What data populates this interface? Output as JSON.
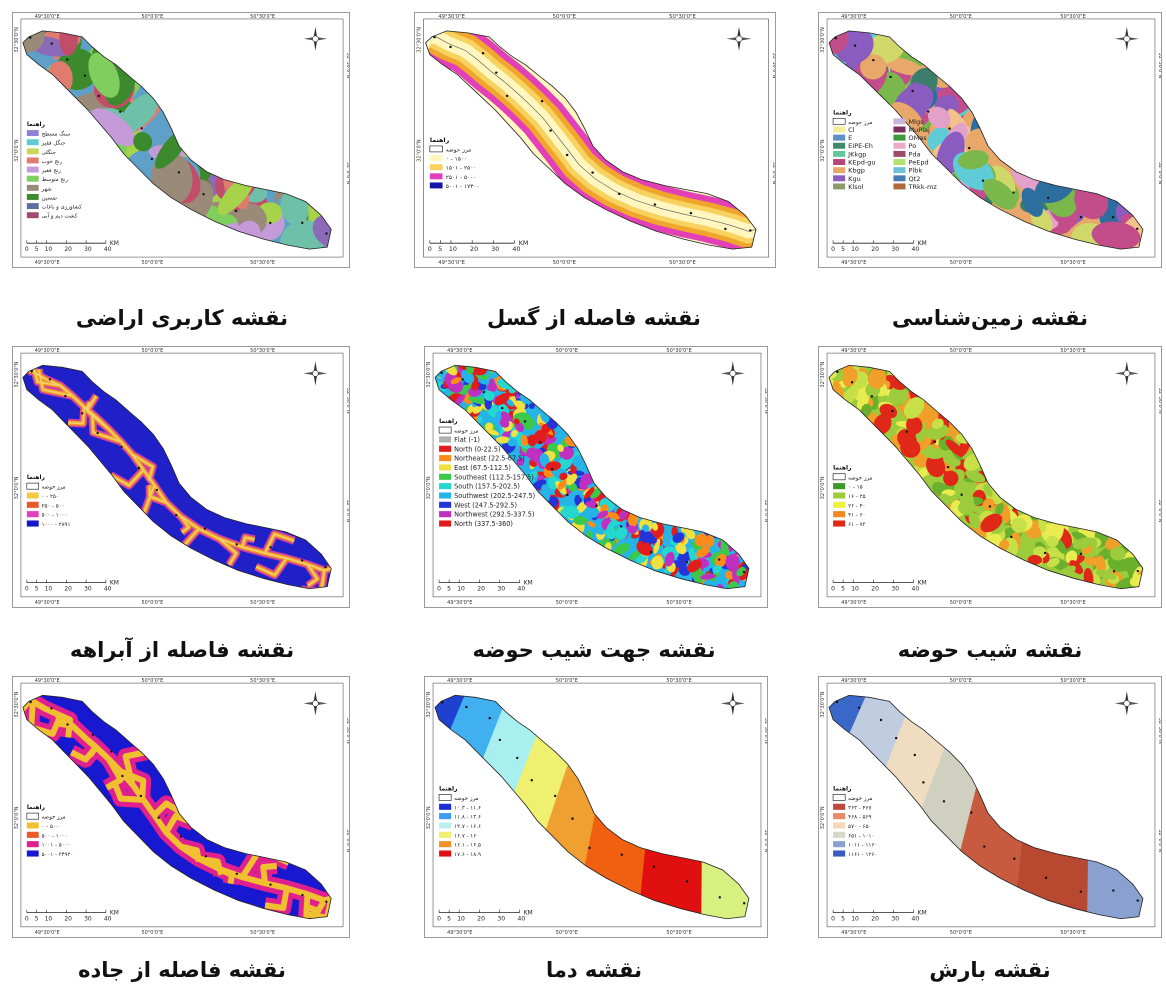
{
  "header": {
    "left": "",
    "center": "",
    "right": ""
  },
  "coords": {
    "lon": [
      "49°30'0\"E",
      "50°0'0\"E",
      "50°30'0\"E"
    ],
    "lat": [
      "32°30'0\"N",
      "32°0'0\"N"
    ]
  },
  "scale": {
    "ticks": [
      "0",
      "5",
      "10",
      "20",
      "30",
      "40"
    ],
    "unit": "KM"
  },
  "legend_title": "راهنما",
  "boundary_label": "مرز حوضه",
  "basin_label": "",
  "panels": [
    {
      "id": "landuse",
      "caption": "نقشه کاربری اراضی",
      "colors": [
        "#5ea0c8",
        "#6ec1a8",
        "#a6d34a",
        "#e07c6e",
        "#c59ad8",
        "#7fce5e",
        "#9a8a78",
        "#3d8a2e",
        "#8c6ab8",
        "#c24d6b"
      ],
      "legend": [
        {
          "label": "سنگ مسطح",
          "color": "#8e80d8"
        },
        {
          "label": "جنگل فقیر",
          "color": "#5fcbd6"
        },
        {
          "label": "جنگلی",
          "color": "#c9d65a"
        },
        {
          "label": "رنج خوب",
          "color": "#e07c6e"
        },
        {
          "label": "رنج فقیر",
          "color": "#c59ad8"
        },
        {
          "label": "رنج متوسط",
          "color": "#7fce5e"
        },
        {
          "label": "شهر",
          "color": "#9a8a78"
        },
        {
          "label": "تمسین",
          "color": "#3d8a2e"
        },
        {
          "label": "کشاورزی و باغات",
          "color": "#5b6fa0"
        },
        {
          "label": "کشت دیم و آبی",
          "color": "#a14b72"
        }
      ]
    },
    {
      "id": "fault",
      "caption": "نقشه فاصله از گسل",
      "colors": [
        "#fff6c0",
        "#f8d25e",
        "#f0a62c",
        "#e23fb8",
        "#1414a8"
      ],
      "legend": [
        {
          "label": "مرز حوضه",
          "color": "#ffffff",
          "outline": true
        },
        {
          "label": "۰ - ۱۵۰۰",
          "color": "#fff6c0"
        },
        {
          "label": "۱۵۰۱ - ۲۵۰۰",
          "color": "#f8d25e"
        },
        {
          "label": "۲۵۰۱ - ۵۰۰۰",
          "color": "#e23fb8"
        },
        {
          "label": "۵۰۰۱ - ۱۷۳۰۰",
          "color": "#1414a8"
        }
      ]
    },
    {
      "id": "geology",
      "caption": "نقشه زمین‌شناسی",
      "colors": [
        "#e8a86a",
        "#5fcbd6",
        "#7ab84c",
        "#c24d8a",
        "#8a5cc0",
        "#f2c28a",
        "#3a7d6a",
        "#d0d86a",
        "#2c6e9e",
        "#e3a0c8"
      ],
      "legend": [
        {
          "label": "مرز حوضه",
          "color": "#ffffff",
          "outline": true
        },
        {
          "label": "Cl",
          "color": "#f1ef9a"
        },
        {
          "label": "E",
          "color": "#5e8fc6"
        },
        {
          "label": "EIPE-Eh",
          "color": "#3d8a6e"
        },
        {
          "label": "JKkgp",
          "color": "#61c89a"
        },
        {
          "label": "KEpd-gu",
          "color": "#b8447a"
        },
        {
          "label": "Kbgp",
          "color": "#e8a86a"
        },
        {
          "label": "Kgu",
          "color": "#8a5cc0"
        },
        {
          "label": "Klsol",
          "color": "#8a9a6a"
        },
        {
          "label": "Mlgs",
          "color": "#c8b6dc"
        },
        {
          "label": "MuPlaj",
          "color": "#7a2f5e"
        },
        {
          "label": "OMas",
          "color": "#3c9a3c"
        },
        {
          "label": "Po",
          "color": "#f0a6c6"
        },
        {
          "label": "Pda",
          "color": "#a04a6a"
        },
        {
          "label": "PeEpd",
          "color": "#b6e070"
        },
        {
          "label": "Plbk",
          "color": "#6ec1d8"
        },
        {
          "label": "Qt2",
          "color": "#4a7ab8"
        },
        {
          "label": "TRkk-mz",
          "color": "#b06a3a"
        }
      ]
    },
    {
      "id": "river",
      "caption": "نقشه فاصله از آبراهه",
      "colors": [
        "#2020c8",
        "#d040a0",
        "#f0a020",
        "#f5d070"
      ],
      "legend": [
        {
          "label": "مرز حوضه",
          "color": "#ffffff",
          "outline": true
        },
        {
          "label": "۰ - ۲۵۰",
          "color": "#f5c842"
        },
        {
          "label": "۲۵۰ - ۵۰۰",
          "color": "#e85a2a"
        },
        {
          "label": "۵۰۰ - ۱۰۰۰",
          "color": "#e23fb8"
        },
        {
          "label": "۱۰۰۰ - ۲۸۹۱",
          "color": "#1414c8"
        }
      ]
    },
    {
      "id": "aspect",
      "caption": "نقشه جهت شیب حوضه",
      "colors": [
        "#24b4e8",
        "#2434d8",
        "#f0e040",
        "#3cc84a",
        "#e01c1c",
        "#ff8c1a",
        "#c030c0",
        "#24d8d0"
      ],
      "legend": [
        {
          "label": "مرز حوضه",
          "color": "#ffffff",
          "outline": true
        },
        {
          "label": "Flat (-1)",
          "color": "#b0b0b0"
        },
        {
          "label": "North (0-22.5)",
          "color": "#e01c1c"
        },
        {
          "label": "Northeast (22.5-67.5)",
          "color": "#ff8c1a"
        },
        {
          "label": "East (67.5-112.5)",
          "color": "#f0e040"
        },
        {
          "label": "Southeast (112.5-157.5)",
          "color": "#3cc84a"
        },
        {
          "label": "South (157.5-202.5)",
          "color": "#24d8d0"
        },
        {
          "label": "Southwest (202.5-247.5)",
          "color": "#24b4e8"
        },
        {
          "label": "West (247.5-292.5)",
          "color": "#2434d8"
        },
        {
          "label": "Northwest (292.5-337.5)",
          "color": "#c030c0"
        },
        {
          "label": "North (337.5-360)",
          "color": "#e01c1c"
        }
      ]
    },
    {
      "id": "slope",
      "caption": "نقشه شیب حوضه",
      "colors": [
        "#9ccc3c",
        "#c8e048",
        "#6ab02c",
        "#e8ec50",
        "#f0a028",
        "#e02818"
      ],
      "legend": [
        {
          "label": "مرز حوضه",
          "color": "#ffffff",
          "outline": true
        },
        {
          "label": "۰ - ۱۵",
          "color": "#3c9a2a"
        },
        {
          "label": "۱۶ - ۲۵",
          "color": "#9ccc3c"
        },
        {
          "label": "۲۶ - ۴۰",
          "color": "#f0f040"
        },
        {
          "label": "۴۱ - ۶۰",
          "color": "#f08a20"
        },
        {
          "label": "۶۱ - ۷۳",
          "color": "#e02818"
        }
      ]
    },
    {
      "id": "road",
      "caption": "نقشه فاصله از جاده",
      "colors": [
        "#1818d0",
        "#e0208e",
        "#f0c030",
        "#1818d0"
      ],
      "legend": [
        {
          "label": "مرز حوضه",
          "color": "#ffffff",
          "outline": true
        },
        {
          "label": "۰ - ۵۰۰",
          "color": "#f0c030"
        },
        {
          "label": "۵۰۰ - ۱۰۰۰",
          "color": "#e85a2a"
        },
        {
          "label": "۱۰۰۱ - ۵۰۰۰",
          "color": "#e0208e"
        },
        {
          "label": "۵۰۰۱ - ۲۴۹۲۰",
          "color": "#1818d0"
        }
      ]
    },
    {
      "id": "temperature",
      "caption": "نقشه دما",
      "colors": [
        "#6aaee8",
        "#2040d0",
        "#40b0f0",
        "#a8f0f0",
        "#f0f070",
        "#f0a030",
        "#f06010",
        "#e01010",
        "#d8f080"
      ],
      "legend": [
        {
          "label": "مرز حوضه",
          "color": "#ffffff",
          "outline": true
        },
        {
          "label": "۱۰.۳ - ۱۱.۶",
          "color": "#1e2cd8"
        },
        {
          "label": "۱۱.۸ - ۱۳.۶",
          "color": "#3c9cf0"
        },
        {
          "label": "۱۳.۷ - ۱۶.۶",
          "color": "#b8f0f0"
        },
        {
          "label": "۱۶.۷ - ۱۶",
          "color": "#f0f070"
        },
        {
          "label": "۱۶.۱ - ۱۶.۵",
          "color": "#f09028"
        },
        {
          "label": "۱۷.۶ - ۱۸.۹",
          "color": "#e01010"
        }
      ]
    },
    {
      "id": "precip",
      "caption": "نقشه بارش",
      "colors": [
        "#e6c8a8",
        "#3a68c8",
        "#c0cce0",
        "#f0dcc0",
        "#d0d0c0",
        "#c85a40",
        "#b84830",
        "#8aa0d0"
      ],
      "legend": [
        {
          "label": "مرز حوضه",
          "color": "#ffffff",
          "outline": true
        },
        {
          "label": "۳۶۳ - ۴۶۷",
          "color": "#c0483a"
        },
        {
          "label": "۴۶۸ - ۵۶۹",
          "color": "#e88a6a"
        },
        {
          "label": "۵۷۰ - ۶۵۰",
          "color": "#f5d8b8"
        },
        {
          "label": "۶۵۱ - ۱۰۱۰",
          "color": "#d8d8c8"
        },
        {
          "label": "۱۰۱۱ - ۱۱۶۰",
          "color": "#8aa0d0"
        },
        {
          "label": "۱۱۶۱ - ۱۲۶۰",
          "color": "#3a5cc0"
        }
      ]
    }
  ]
}
